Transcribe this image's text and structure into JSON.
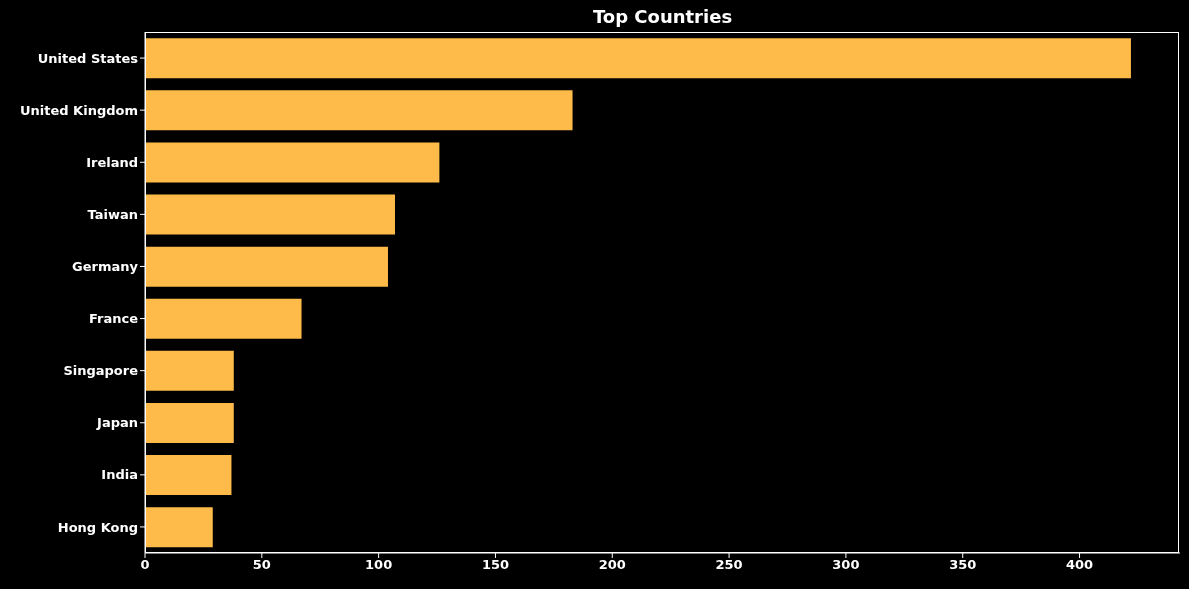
{
  "chart_data": {
    "type": "bar",
    "orientation": "horizontal",
    "title": "Top Countries",
    "categories": [
      "United States",
      "United Kingdom",
      "Ireland",
      "Taiwan",
      "Germany",
      "France",
      "Singapore",
      "Japan",
      "India",
      "Hong Kong"
    ],
    "values": [
      422,
      183,
      126,
      107,
      104,
      67,
      38,
      38,
      37,
      29
    ],
    "color": "#ffbb49",
    "xlim": [
      0,
      443
    ],
    "xticks": [
      0,
      50,
      100,
      150,
      200,
      250,
      300,
      350,
      400
    ],
    "grid": false
  }
}
